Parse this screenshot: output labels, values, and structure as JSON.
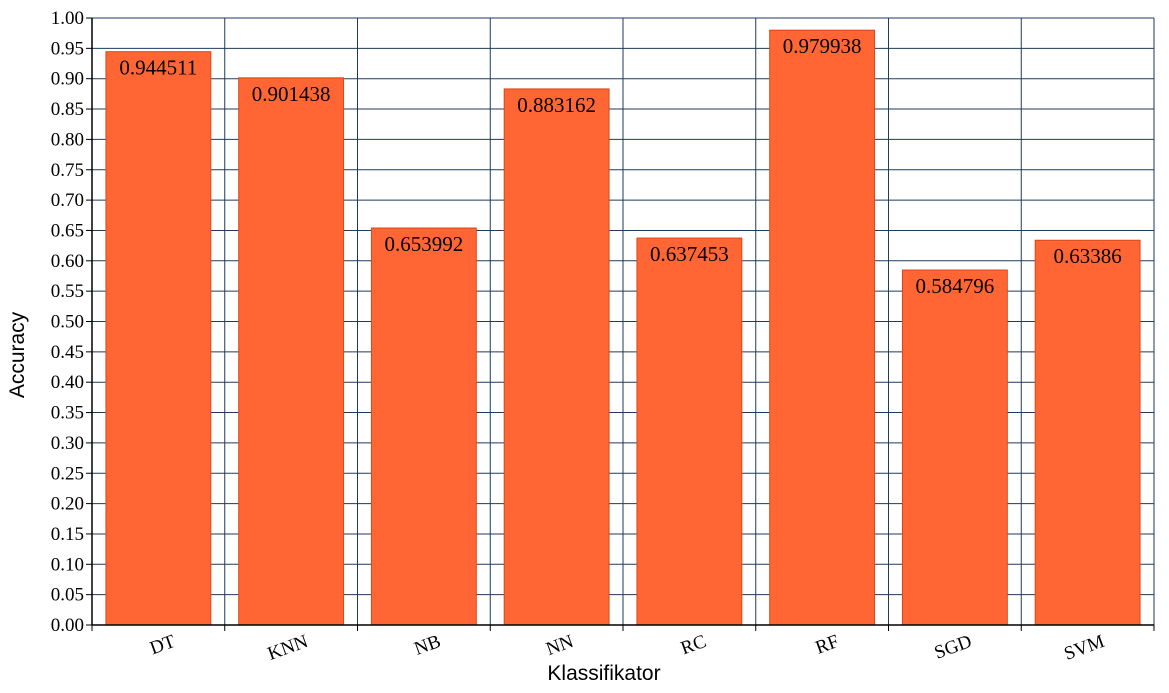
{
  "chart_data": {
    "type": "bar",
    "title": "",
    "xlabel": "Klassifikator",
    "ylabel": "Accuracy",
    "ylim": [
      0,
      1
    ],
    "ytick_step": 0.05,
    "yticks": [
      "0.00",
      "0.05",
      "0.10",
      "0.15",
      "0.20",
      "0.25",
      "0.30",
      "0.35",
      "0.40",
      "0.45",
      "0.50",
      "0.55",
      "0.60",
      "0.65",
      "0.70",
      "0.75",
      "0.80",
      "0.85",
      "0.90",
      "0.95",
      "1.00"
    ],
    "categories": [
      "DT",
      "KNN",
      "NB",
      "NN",
      "RC",
      "RF",
      "SGD",
      "SVM"
    ],
    "values": [
      0.944511,
      0.901438,
      0.653992,
      0.883162,
      0.637453,
      0.979938,
      0.584796,
      0.63386
    ],
    "value_labels": [
      "0.944511",
      "0.901438",
      "0.653992",
      "0.883162",
      "0.637453",
      "0.979938",
      "0.584796",
      "0.63386"
    ],
    "grid": true,
    "legend": "none",
    "colors": {
      "bar_fill": "#FF6633",
      "bar_stroke": "#D9471A",
      "grid": "#1F3A5F",
      "axis": "#000000"
    }
  }
}
